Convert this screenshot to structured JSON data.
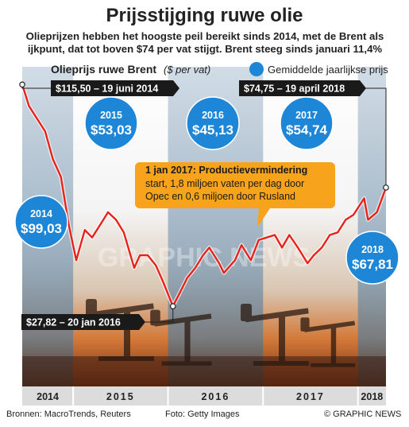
{
  "title": "Prijsstijging ruwe olie",
  "subtitle": "Olieprijzen hebben het hoogste peil bereikt sinds 2014, met de Brent als ijkpunt, dat tot boven $74 per vat stijgt. Brent steeg sinds januari 11,4%",
  "footer": {
    "sources": "Bronnen: MacroTrends, Reuters",
    "photo": "Foto: Getty Images",
    "credit": "© GRAPHIC NEWS"
  },
  "colors": {
    "line": "#e8221b",
    "bubble": "#1e86d6",
    "callout": "#f7a31b",
    "label_bg": "#1a1a1a"
  },
  "chart_data": {
    "type": "line",
    "series_label": "Olieprijs ruwe Brent",
    "unit_label": "($ per vat)",
    "legend_label": "Gemiddelde jaarlijkse prijs",
    "years": [
      "2014",
      "2015",
      "2016",
      "2017",
      "2018"
    ],
    "xlim": [
      "2014-06-19",
      "2018-04-19"
    ],
    "x": [
      "2014-06-19",
      "2014-07-15",
      "2014-08-15",
      "2014-09-15",
      "2014-10-15",
      "2014-11-15",
      "2014-12-15",
      "2015-01-13",
      "2015-02-15",
      "2015-03-15",
      "2015-04-15",
      "2015-05-15",
      "2015-06-15",
      "2015-07-15",
      "2015-08-24",
      "2015-09-15",
      "2015-10-15",
      "2015-11-15",
      "2015-12-15",
      "2016-01-20",
      "2016-02-15",
      "2016-03-15",
      "2016-04-15",
      "2016-05-15",
      "2016-06-08",
      "2016-07-15",
      "2016-08-03",
      "2016-09-15",
      "2016-10-10",
      "2016-11-15",
      "2016-12-15",
      "2017-01-15",
      "2017-02-15",
      "2017-03-15",
      "2017-04-12",
      "2017-05-15",
      "2017-06-21",
      "2017-07-15",
      "2017-08-15",
      "2017-09-15",
      "2017-10-15",
      "2017-11-15",
      "2017-12-15",
      "2018-01-25",
      "2018-02-09",
      "2018-03-15",
      "2018-04-19"
    ],
    "y": [
      115.5,
      107,
      102,
      97,
      86,
      79,
      60,
      46,
      58,
      55,
      60,
      65,
      62,
      57,
      43,
      48,
      48,
      44,
      37,
      27.82,
      33,
      39,
      43,
      48,
      51,
      45,
      41,
      46,
      52,
      46,
      54,
      55,
      56,
      51,
      56,
      51,
      44.8,
      48,
      51,
      56,
      57,
      62,
      64,
      70.5,
      62,
      65,
      74.75
    ],
    "annotations": [
      {
        "label": "$115,50 – 19 juni 2014",
        "x": "2014-06-19",
        "y": 115.5
      },
      {
        "label": "$27,82 – 20 jan 2016",
        "x": "2016-01-20",
        "y": 27.82
      },
      {
        "label": "$74,75 – 19 april 2018",
        "x": "2018-04-19",
        "y": 74.75
      }
    ],
    "averages": [
      {
        "year": "2014",
        "value": "$99,03"
      },
      {
        "year": "2015",
        "value": "$53,03"
      },
      {
        "year": "2016",
        "value": "$45,13"
      },
      {
        "year": "2017",
        "value": "$54,74"
      },
      {
        "year": "2018",
        "value": "$67,81"
      }
    ],
    "callout": {
      "heading": "1 jan 2017: Productievermindering",
      "body": [
        "start, 1,8 miljoen vaten per dag door",
        "Opec en 0,6 miljoen door Rusland"
      ]
    },
    "watermark": "GRAPHIC NEWS"
  }
}
